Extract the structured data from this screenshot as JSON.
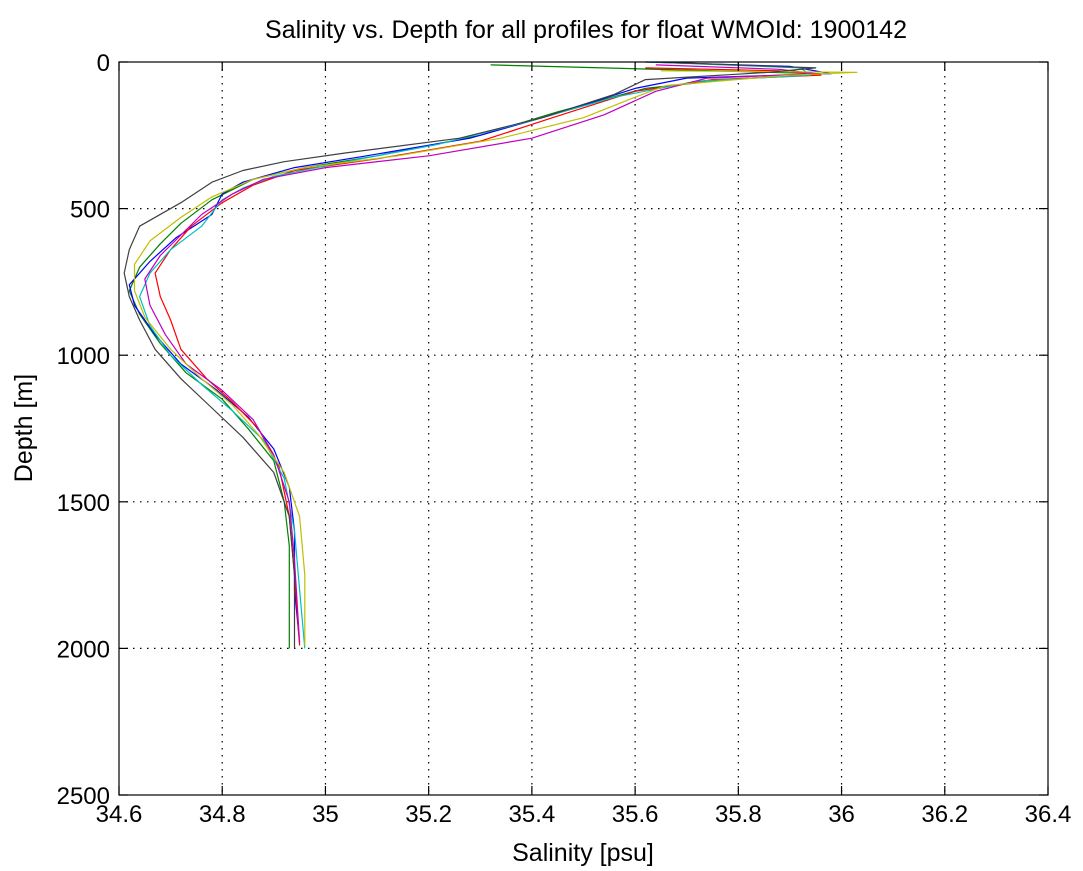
{
  "chart_data": {
    "type": "line",
    "title": "Salinity vs. Depth for all profiles for float WMOId: 1900142",
    "xlabel": "Salinity [psu]",
    "ylabel": "Depth [m]",
    "xlim": [
      34.6,
      36.4
    ],
    "ylim": [
      0,
      2500
    ],
    "y_reversed": true,
    "grid": true,
    "legend": "none",
    "x_ticks": [
      34.6,
      34.8,
      35,
      35.2,
      35.4,
      35.6,
      35.8,
      36,
      36.2,
      36.4
    ],
    "x_tick_labels": [
      "34.6",
      "34.8",
      "35",
      "35.2",
      "35.4",
      "35.6",
      "35.8",
      "36",
      "36.2",
      "36.4"
    ],
    "y_ticks": [
      0,
      500,
      1000,
      1500,
      2000,
      2500
    ],
    "y_tick_labels": [
      "0",
      "500",
      "1000",
      "1500",
      "2000",
      "2500"
    ],
    "series": [
      {
        "color": "#008000",
        "points": [
          [
            35.32,
            10
          ],
          [
            35.96,
            40
          ],
          [
            35.78,
            60
          ],
          [
            35.62,
            90
          ],
          [
            35.45,
            170
          ],
          [
            35.3,
            250
          ],
          [
            35.1,
            320
          ],
          [
            34.96,
            360
          ],
          [
            34.86,
            400
          ],
          [
            34.78,
            470
          ],
          [
            34.72,
            550
          ],
          [
            34.68,
            620
          ],
          [
            34.64,
            700
          ],
          [
            34.62,
            780
          ],
          [
            34.64,
            860
          ],
          [
            34.68,
            960
          ],
          [
            34.73,
            1060
          ],
          [
            34.8,
            1150
          ],
          [
            34.85,
            1250
          ],
          [
            34.9,
            1360
          ],
          [
            34.92,
            1500
          ],
          [
            34.93,
            1650
          ],
          [
            34.93,
            1800
          ],
          [
            34.93,
            2000
          ]
        ]
      },
      {
        "color": "#0000ff",
        "points": [
          [
            35.62,
            0
          ],
          [
            35.9,
            15
          ],
          [
            35.98,
            40
          ],
          [
            35.7,
            55
          ],
          [
            35.6,
            90
          ],
          [
            35.44,
            180
          ],
          [
            35.28,
            260
          ],
          [
            35.08,
            320
          ],
          [
            34.94,
            360
          ],
          [
            34.84,
            410
          ],
          [
            34.8,
            450
          ],
          [
            34.78,
            520
          ],
          [
            34.71,
            600
          ],
          [
            34.66,
            680
          ],
          [
            34.62,
            760
          ],
          [
            34.63,
            830
          ],
          [
            34.67,
            930
          ],
          [
            34.72,
            1030
          ],
          [
            34.79,
            1120
          ],
          [
            34.85,
            1210
          ],
          [
            34.9,
            1320
          ],
          [
            34.93,
            1450
          ],
          [
            34.94,
            1600
          ],
          [
            34.94,
            1800
          ],
          [
            34.95,
            1980
          ]
        ]
      },
      {
        "color": "#ff0000",
        "points": [
          [
            35.62,
            20
          ],
          [
            35.88,
            30
          ],
          [
            35.96,
            45
          ],
          [
            35.75,
            60
          ],
          [
            35.6,
            100
          ],
          [
            35.44,
            190
          ],
          [
            35.3,
            270
          ],
          [
            35.1,
            330
          ],
          [
            34.94,
            370
          ],
          [
            34.86,
            420
          ],
          [
            34.8,
            480
          ],
          [
            34.74,
            560
          ],
          [
            34.7,
            640
          ],
          [
            34.67,
            720
          ],
          [
            34.68,
            800
          ],
          [
            34.7,
            880
          ],
          [
            34.72,
            980
          ],
          [
            34.77,
            1080
          ],
          [
            34.82,
            1160
          ],
          [
            34.87,
            1250
          ],
          [
            34.91,
            1380
          ],
          [
            34.93,
            1550
          ],
          [
            34.94,
            1750
          ],
          [
            34.95,
            1990
          ]
        ]
      },
      {
        "color": "#00bfbf",
        "points": [
          [
            35.63,
            0
          ],
          [
            35.92,
            20
          ],
          [
            35.94,
            45
          ],
          [
            35.72,
            65
          ],
          [
            35.56,
            120
          ],
          [
            35.4,
            200
          ],
          [
            35.22,
            280
          ],
          [
            35.04,
            340
          ],
          [
            34.9,
            390
          ],
          [
            34.84,
            430
          ],
          [
            34.8,
            470
          ],
          [
            34.76,
            560
          ],
          [
            34.7,
            640
          ],
          [
            34.66,
            720
          ],
          [
            34.64,
            800
          ],
          [
            34.66,
            900
          ],
          [
            34.7,
            1000
          ],
          [
            34.76,
            1100
          ],
          [
            34.82,
            1190
          ],
          [
            34.88,
            1290
          ],
          [
            34.92,
            1420
          ],
          [
            34.94,
            1600
          ],
          [
            34.95,
            1800
          ],
          [
            34.96,
            2000
          ]
        ]
      },
      {
        "color": "#bf00bf",
        "points": [
          [
            35.64,
            10
          ],
          [
            35.88,
            25
          ],
          [
            35.95,
            40
          ],
          [
            35.74,
            55
          ],
          [
            35.64,
            100
          ],
          [
            35.54,
            180
          ],
          [
            35.4,
            260
          ],
          [
            35.2,
            320
          ],
          [
            35,
            360
          ],
          [
            34.88,
            400
          ],
          [
            34.82,
            450
          ],
          [
            34.76,
            520
          ],
          [
            34.72,
            590
          ],
          [
            34.68,
            660
          ],
          [
            34.65,
            740
          ],
          [
            34.66,
            830
          ],
          [
            34.69,
            930
          ],
          [
            34.73,
            1030
          ],
          [
            34.8,
            1120
          ],
          [
            34.86,
            1220
          ],
          [
            34.9,
            1340
          ],
          [
            34.93,
            1500
          ],
          [
            34.94,
            1700
          ],
          [
            34.95,
            1980
          ]
        ]
      },
      {
        "color": "#bfbf00",
        "points": [
          [
            35.65,
            30
          ],
          [
            36.03,
            35
          ],
          [
            35.9,
            45
          ],
          [
            35.66,
            80
          ],
          [
            35.6,
            120
          ],
          [
            35.5,
            190
          ],
          [
            35.34,
            260
          ],
          [
            35.14,
            320
          ],
          [
            34.96,
            360
          ],
          [
            34.86,
            400
          ],
          [
            34.78,
            460
          ],
          [
            34.72,
            530
          ],
          [
            34.66,
            610
          ],
          [
            34.63,
            690
          ],
          [
            34.63,
            780
          ],
          [
            34.65,
            870
          ],
          [
            34.7,
            980
          ],
          [
            34.76,
            1080
          ],
          [
            34.82,
            1170
          ],
          [
            34.87,
            1270
          ],
          [
            34.92,
            1400
          ],
          [
            34.95,
            1550
          ],
          [
            34.96,
            1750
          ],
          [
            34.96,
            1990
          ]
        ]
      },
      {
        "color": "#404040",
        "points": [
          [
            35.64,
            0
          ],
          [
            35.95,
            20
          ],
          [
            35.86,
            35
          ],
          [
            35.62,
            60
          ],
          [
            35.56,
            110
          ],
          [
            35.42,
            190
          ],
          [
            35.26,
            260
          ],
          [
            35.04,
            310
          ],
          [
            34.92,
            340
          ],
          [
            34.84,
            370
          ],
          [
            34.78,
            410
          ],
          [
            34.72,
            480
          ],
          [
            34.64,
            560
          ],
          [
            34.62,
            640
          ],
          [
            34.61,
            720
          ],
          [
            34.62,
            800
          ],
          [
            34.64,
            880
          ],
          [
            34.67,
            980
          ],
          [
            34.72,
            1080
          ],
          [
            34.78,
            1180
          ],
          [
            34.84,
            1280
          ],
          [
            34.9,
            1400
          ],
          [
            34.93,
            1550
          ],
          [
            34.94,
            1750
          ],
          [
            34.94,
            2000
          ]
        ]
      }
    ]
  }
}
